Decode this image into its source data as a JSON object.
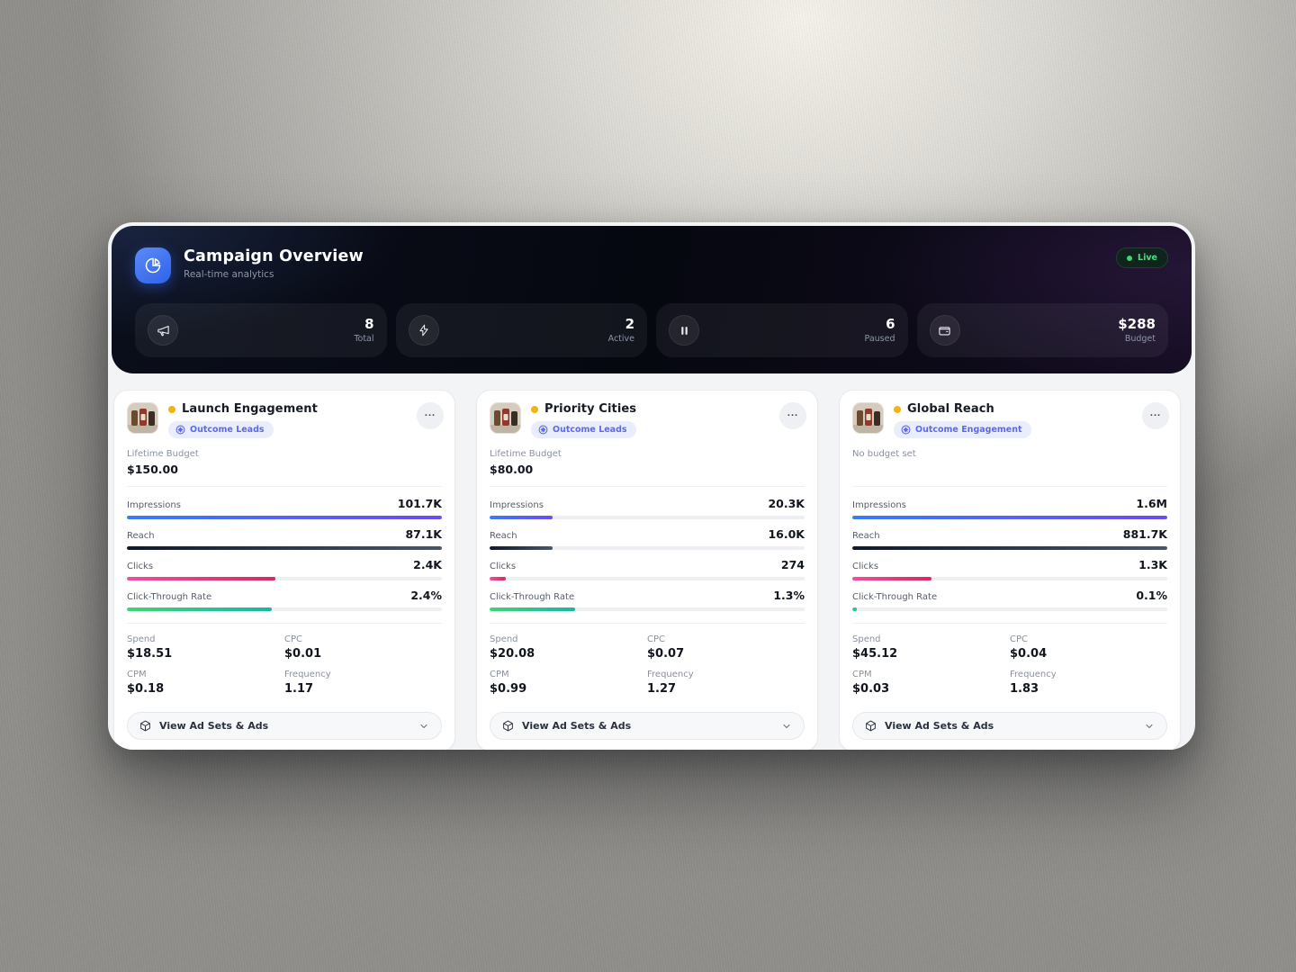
{
  "header": {
    "title": "Campaign Overview",
    "subtitle": "Real-time analytics",
    "live_label": "Live",
    "stats": [
      {
        "icon": "megaphone-icon",
        "value": "8",
        "label": "Total"
      },
      {
        "icon": "lightning-icon",
        "value": "2",
        "label": "Active"
      },
      {
        "icon": "pause-icon",
        "value": "6",
        "label": "Paused"
      },
      {
        "icon": "wallet-icon",
        "value": "$288",
        "label": "Budget"
      }
    ]
  },
  "colors": {
    "accent_blue": "#2f62ea",
    "status_yellow": "#f2b40e",
    "live_green": "#4ade80",
    "badge_bg": "#e9edfc",
    "badge_text": "#5a6af0",
    "bar_gradients": {
      "impressions": [
        "#3b7bf6",
        "#6d4cf0"
      ],
      "reach": [
        "#10192b",
        "#4b5563"
      ],
      "clicks": [
        "#ef4f9f",
        "#dc2660"
      ],
      "ctr": [
        "#3fd473",
        "#17b8a6"
      ]
    }
  },
  "campaigns": [
    {
      "name": "Launch Engagement",
      "objective_badge": "Outcome Leads",
      "budget_label": "Lifetime Budget",
      "budget_value": "$150.00",
      "metrics": [
        {
          "label": "Impressions",
          "value": "101.7K",
          "bar": "impressions",
          "pct": 100
        },
        {
          "label": "Reach",
          "value": "87.1K",
          "bar": "reach",
          "pct": 100
        },
        {
          "label": "Clicks",
          "value": "2.4K",
          "bar": "clicks",
          "pct": 47
        },
        {
          "label": "Click-Through Rate",
          "value": "2.4%",
          "bar": "ctr",
          "pct": 46
        }
      ],
      "stats": [
        {
          "label": "Spend",
          "value": "$18.51"
        },
        {
          "label": "CPC",
          "value": "$0.01"
        },
        {
          "label": "CPM",
          "value": "$0.18"
        },
        {
          "label": "Frequency",
          "value": "1.17"
        }
      ],
      "action_label": "View Ad Sets & Ads"
    },
    {
      "name": "Priority Cities",
      "objective_badge": "Outcome Leads",
      "budget_label": "Lifetime Budget",
      "budget_value": "$80.00",
      "metrics": [
        {
          "label": "Impressions",
          "value": "20.3K",
          "bar": "impressions",
          "pct": 20
        },
        {
          "label": "Reach",
          "value": "16.0K",
          "bar": "reach",
          "pct": 20
        },
        {
          "label": "Clicks",
          "value": "274",
          "bar": "clicks",
          "pct": 5
        },
        {
          "label": "Click-Through Rate",
          "value": "1.3%",
          "bar": "ctr",
          "pct": 27
        }
      ],
      "stats": [
        {
          "label": "Spend",
          "value": "$20.08"
        },
        {
          "label": "CPC",
          "value": "$0.07"
        },
        {
          "label": "CPM",
          "value": "$0.99"
        },
        {
          "label": "Frequency",
          "value": "1.27"
        }
      ],
      "action_label": "View Ad Sets & Ads"
    },
    {
      "name": "Global Reach",
      "objective_badge": "Outcome Engagement",
      "budget_label": "No budget set",
      "budget_value": "",
      "metrics": [
        {
          "label": "Impressions",
          "value": "1.6M",
          "bar": "impressions",
          "pct": 100
        },
        {
          "label": "Reach",
          "value": "881.7K",
          "bar": "reach",
          "pct": 100
        },
        {
          "label": "Clicks",
          "value": "1.3K",
          "bar": "clicks",
          "pct": 25
        },
        {
          "label": "Click-Through Rate",
          "value": "0.1%",
          "bar": "ctr",
          "pct": 1.5
        }
      ],
      "stats": [
        {
          "label": "Spend",
          "value": "$45.12"
        },
        {
          "label": "CPC",
          "value": "$0.04"
        },
        {
          "label": "CPM",
          "value": "$0.03"
        },
        {
          "label": "Frequency",
          "value": "1.83"
        }
      ],
      "action_label": "View Ad Sets & Ads"
    }
  ]
}
